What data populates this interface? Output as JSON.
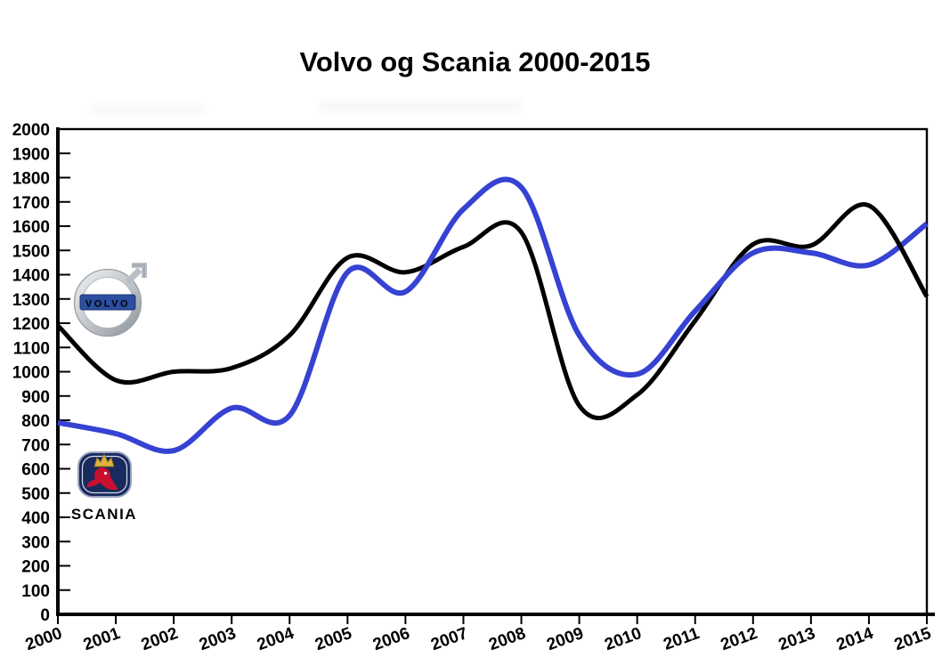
{
  "title": "Volvo og Scania 2000-2015",
  "chart_data": {
    "type": "line",
    "x": [
      2000,
      2001,
      2002,
      2003,
      2004,
      2005,
      2006,
      2007,
      2008,
      2009,
      2010,
      2011,
      2012,
      2013,
      2014,
      2015
    ],
    "series": [
      {
        "name": "Volvo",
        "color": "#000000",
        "stroke_width": 5,
        "values": [
          1190,
          965,
          1000,
          1015,
          1150,
          1470,
          1410,
          1515,
          1575,
          860,
          905,
          1210,
          1525,
          1520,
          1685,
          1310
        ]
      },
      {
        "name": "Scania",
        "color": "#3642d2",
        "stroke_width": 6,
        "values": [
          790,
          745,
          675,
          850,
          820,
          1410,
          1330,
          1670,
          1760,
          1150,
          990,
          1250,
          1490,
          1490,
          1440,
          1610
        ]
      }
    ],
    "xlabel": "",
    "ylabel": "",
    "ylim": [
      0,
      2000
    ],
    "ytick_step": 100,
    "xtick_labels": [
      "2000",
      "2001",
      "2002",
      "2003",
      "2004",
      "2005",
      "2006",
      "2007",
      "2008",
      "2009",
      "2010",
      "2011",
      "2012",
      "2013",
      "2014",
      "2015"
    ],
    "ytick_labels": [
      "0",
      "100",
      "200",
      "300",
      "400",
      "500",
      "600",
      "700",
      "800",
      "900",
      "1000",
      "1100",
      "1200",
      "1300",
      "1400",
      "1500",
      "1600",
      "1700",
      "1800",
      "1900",
      "2000"
    ],
    "grid": false,
    "legend_position": "logos-inside-left"
  },
  "logos": {
    "volvo": {
      "label": "VOLVO",
      "band_color": "#2b4ea0"
    },
    "scania": {
      "label": "SCANIA",
      "badge_color": "#182a5e",
      "griffin_color": "#c8102e",
      "crown_color": "#e2b13c",
      "wordmark_color": "#1b2e73"
    }
  }
}
